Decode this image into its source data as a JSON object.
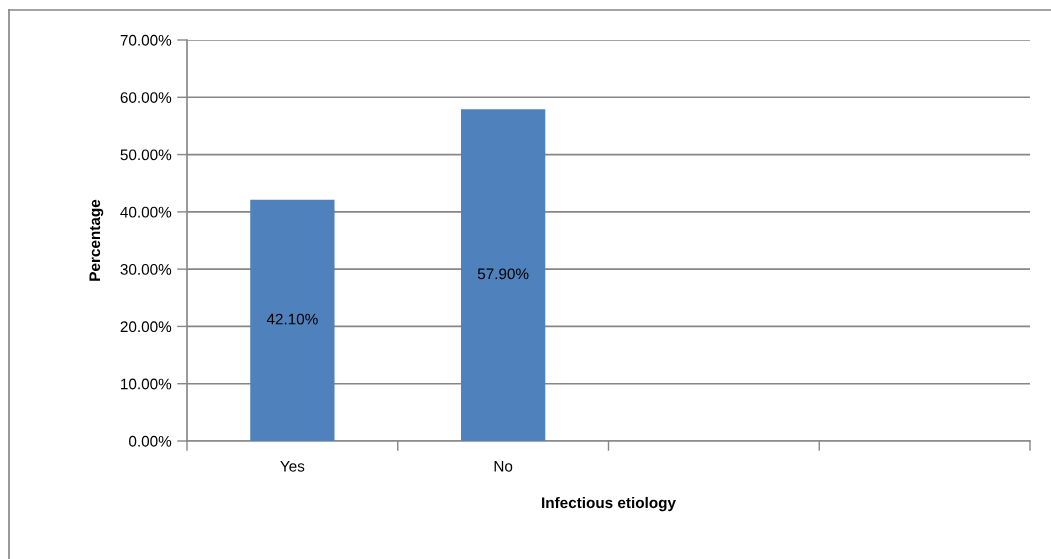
{
  "chart_data": {
    "type": "bar",
    "xlabel": "Infectious etiology",
    "ylabel": "Percentage",
    "categories": [
      "Yes",
      "No",
      null,
      null
    ],
    "values": [
      42.1,
      57.9,
      null,
      null
    ],
    "color": "#4f81bd",
    "value_labels": [
      "42.10%",
      "57.90%",
      null,
      null
    ],
    "ylim": [
      0,
      70
    ],
    "yticks": [
      {
        "value": 0,
        "label": "0.00%"
      },
      {
        "value": 10,
        "label": "10.00%"
      },
      {
        "value": 20,
        "label": "20.00%"
      },
      {
        "value": 30,
        "label": "30.00%"
      },
      {
        "value": 40,
        "label": "40.00%"
      },
      {
        "value": 50,
        "label": "50.00%"
      },
      {
        "value": 60,
        "label": "60.00%"
      },
      {
        "value": 70,
        "label": "70.00%"
      }
    ],
    "grid": "y"
  }
}
